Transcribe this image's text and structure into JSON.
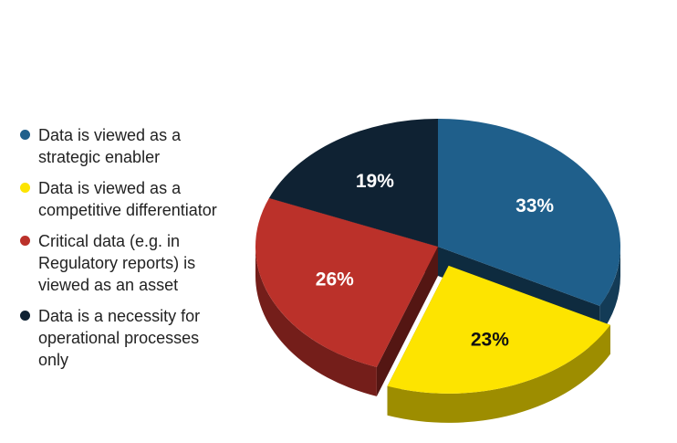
{
  "chart_data": {
    "type": "pie",
    "title": "",
    "slices": [
      {
        "label": "Data is viewed as a strategic enabler",
        "value": 33,
        "display": "33%",
        "color": "#1f5f8b",
        "text_color": "#ffffff",
        "exploded": false
      },
      {
        "label": "Data is viewed as a competitive differentiator",
        "value": 23,
        "display": "23%",
        "color": "#fde400",
        "text_color": "#111111",
        "exploded": true
      },
      {
        "label": "Critical data (e.g. in Regulatory reports) is viewed as an asset",
        "value": 26,
        "display": "26%",
        "color": "#bb312a",
        "text_color": "#ffffff",
        "exploded": false
      },
      {
        "label": "Data is a necessity for operational processes only",
        "value": 19,
        "display": "19%",
        "color": "#0f2233",
        "text_color": "#ffffff",
        "exploded": false
      }
    ],
    "legend_position": "left",
    "style": "3d-exploded-pie"
  }
}
